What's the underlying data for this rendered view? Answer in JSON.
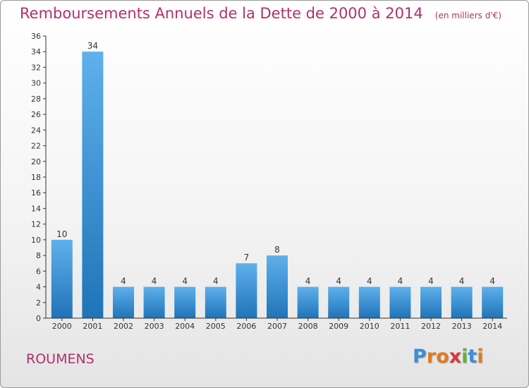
{
  "header": {
    "title": "Remboursements Annuels de la Dette de 2000 à 2014",
    "unit_note": "(en milliers d'€)"
  },
  "footer": {
    "commune": "ROUMENS",
    "logo_text": "Proxiti",
    "logo_colors": [
      "#3a8fd6",
      "#e07b1e",
      "#e07b1e",
      "#d63a3a",
      "#5db33a",
      "#3a8fd6",
      "#e07b1e"
    ]
  },
  "colors": {
    "accent": "#b0306c",
    "bar_top": "#5fb0ec",
    "bar_bottom": "#1f74b8",
    "axis": "#333333",
    "text": "#333333"
  },
  "chart_data": {
    "type": "bar",
    "title": "Remboursements Annuels de la Dette de 2000 à 2014",
    "xlabel": "",
    "ylabel": "",
    "ylim": [
      0,
      36
    ],
    "ytick_step": 2,
    "grid": false,
    "categories": [
      "2000",
      "2001",
      "2002",
      "2003",
      "2004",
      "2005",
      "2006",
      "2007",
      "2008",
      "2009",
      "2010",
      "2011",
      "2012",
      "2013",
      "2014"
    ],
    "values": [
      10,
      34,
      4,
      4,
      4,
      4,
      7,
      8,
      4,
      4,
      4,
      4,
      4,
      4,
      4
    ]
  }
}
